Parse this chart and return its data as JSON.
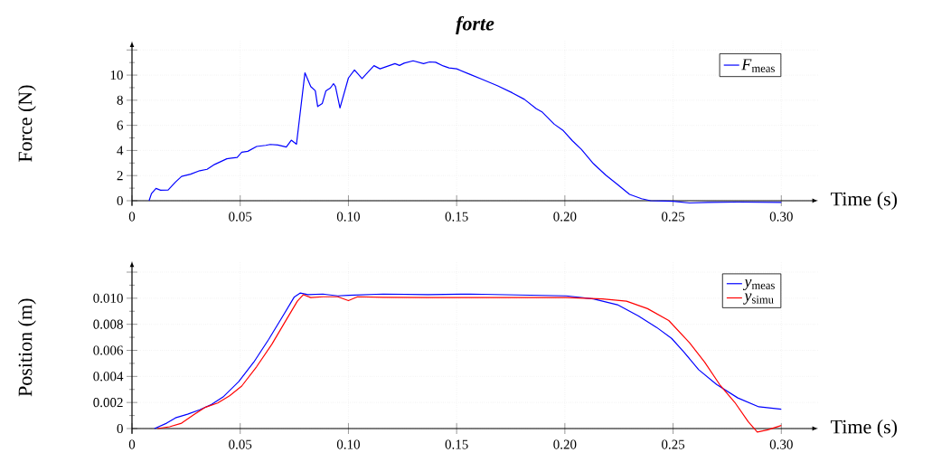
{
  "chart_data": [
    {
      "type": "line",
      "title": "forte",
      "xlabel": "Time (s)",
      "ylabel": "Force (N)",
      "xlim": [
        0,
        0.317
      ],
      "ylim": [
        -0.4,
        12.7
      ],
      "xticks": [
        0,
        {
          "value": 0.05,
          "label": "0.05"
        },
        {
          "value": 0.1,
          "label": "0.10"
        },
        {
          "value": 0.15,
          "label": "0.15"
        },
        {
          "value": 0.2,
          "label": "0.20"
        },
        {
          "value": 0.25,
          "label": "0.25"
        },
        {
          "value": 0.3,
          "label": "0.30"
        }
      ],
      "yticks": [
        0,
        2,
        4,
        6,
        8,
        10,
        {
          "value": 12,
          "label": null
        }
      ],
      "grid": true,
      "legend": "top right",
      "series": [
        {
          "name": "*F*$_{meas}$",
          "color": "#0000ff",
          "x": [
            0.0079,
            0.009,
            0.0111,
            0.0132,
            0.0167,
            0.0201,
            0.0229,
            0.0271,
            0.0313,
            0.0347,
            0.0382,
            0.0438,
            0.0486,
            0.0507,
            0.0535,
            0.0576,
            0.0618,
            0.0639,
            0.0674,
            0.0713,
            0.0736,
            0.076,
            0.0799,
            0.0826,
            0.0847,
            0.0858,
            0.0879,
            0.0896,
            0.0917,
            0.0931,
            0.094,
            0.0961,
            0.1,
            0.1028,
            0.1063,
            0.1118,
            0.1146,
            0.1188,
            0.1215,
            0.1236,
            0.1257,
            0.1299,
            0.1347,
            0.1375,
            0.1403,
            0.1438,
            0.1465,
            0.15,
            0.1563,
            0.1618,
            0.1688,
            0.1757,
            0.1813,
            0.1868,
            0.1896,
            0.1951,
            0.1993,
            0.2035,
            0.2076,
            0.2132,
            0.2188,
            0.2243,
            0.2299,
            0.2354,
            0.2396,
            0.25,
            0.2576,
            0.266,
            0.2799,
            0.3
          ],
          "values": [
            0,
            0.57,
            0.98,
            0.84,
            0.86,
            1.48,
            1.93,
            2.11,
            2.39,
            2.5,
            2.89,
            3.34,
            3.45,
            3.86,
            3.93,
            4.32,
            4.41,
            4.48,
            4.43,
            4.27,
            4.82,
            4.5,
            10.18,
            9.09,
            8.75,
            7.5,
            7.73,
            8.75,
            8.98,
            9.32,
            9.09,
            7.39,
            9.77,
            10.41,
            9.73,
            10.75,
            10.5,
            10.75,
            10.91,
            10.77,
            10.95,
            11.14,
            10.91,
            11.05,
            11.02,
            10.73,
            10.57,
            10.5,
            10.05,
            9.66,
            9.16,
            8.59,
            8.07,
            7.32,
            7.05,
            6.09,
            5.57,
            4.77,
            4.09,
            2.95,
            2.05,
            1.3,
            0.5,
            0.16,
            0,
            -0.05,
            -0.18,
            -0.14,
            -0.11,
            -0.14
          ]
        }
      ]
    },
    {
      "type": "line",
      "xlabel": "Time (s)",
      "ylabel": "Position (m)",
      "xlim": [
        0,
        0.317
      ],
      "ylim": [
        -0.0004,
        0.01285
      ],
      "xticks": [
        0,
        {
          "value": 0.05,
          "label": "0.05"
        },
        {
          "value": 0.1,
          "label": "0.10"
        },
        {
          "value": 0.15,
          "label": "0.15"
        },
        {
          "value": 0.2,
          "label": "0.20"
        },
        {
          "value": 0.25,
          "label": "0.25"
        },
        {
          "value": 0.3,
          "label": "0.30"
        }
      ],
      "yticks": [
        0,
        {
          "value": 0.002,
          "label": "0.002"
        },
        {
          "value": 0.004,
          "label": "0.004"
        },
        {
          "value": 0.006,
          "label": "0.006"
        },
        {
          "value": 0.008,
          "label": "0.008"
        },
        {
          "value": 0.01,
          "label": "0.010"
        },
        {
          "value": 0.012,
          "label": null
        }
      ],
      "grid": true,
      "legend": "top right",
      "series": [
        {
          "name": "*y*$_{meas}$",
          "color": "#0000ff",
          "x": [
            0.0104,
            0.016,
            0.0201,
            0.0257,
            0.0313,
            0.0368,
            0.0424,
            0.0493,
            0.0563,
            0.0632,
            0.0701,
            0.075,
            0.0778,
            0.0813,
            0.0882,
            0.0951,
            0.1,
            0.116,
            0.1368,
            0.1563,
            0.2007,
            0.2132,
            0.2243,
            0.234,
            0.2424,
            0.2493,
            0.2549,
            0.2618,
            0.2701,
            0.2799,
            0.2896,
            0.3
          ],
          "values": [
            0,
            0.00041,
            0.00082,
            0.0011,
            0.00144,
            0.00185,
            0.00247,
            0.0036,
            0.0051,
            0.00685,
            0.00874,
            0.0101,
            0.0104,
            0.01027,
            0.01032,
            0.01018,
            0.01023,
            0.01032,
            0.01027,
            0.01032,
            0.01018,
            0.00995,
            0.0095,
            0.00863,
            0.00776,
            0.00692,
            0.00589,
            0.00452,
            0.00338,
            0.00235,
            0.00167,
            0.00148
          ]
        },
        {
          "name": "*y*$_{simu}$",
          "color": "#ff0000",
          "x": [
            0.0118,
            0.0174,
            0.0229,
            0.0285,
            0.034,
            0.0396,
            0.0451,
            0.0507,
            0.0576,
            0.0646,
            0.0715,
            0.0764,
            0.0792,
            0.0826,
            0.0882,
            0.0951,
            0.1,
            0.1042,
            0.116,
            0.1368,
            0.1563,
            0.2007,
            0.2174,
            0.2285,
            0.2382,
            0.248,
            0.2576,
            0.2646,
            0.2715,
            0.2785,
            0.2847,
            0.2889,
            0.2938,
            0.3
          ],
          "values": [
            0,
            0.00014,
            0.00041,
            0.00105,
            0.00164,
            0.00196,
            0.00251,
            0.00326,
            0.00475,
            0.00646,
            0.0084,
            0.00977,
            0.01027,
            0.01005,
            0.01011,
            0.01011,
            0.00982,
            0.01011,
            0.01007,
            0.01005,
            0.01005,
            0.01005,
            0.00995,
            0.00977,
            0.0092,
            0.00829,
            0.00658,
            0.00509,
            0.00338,
            0.00201,
            0.00053,
            -0.00027,
            -0.0001,
            0.00023
          ]
        }
      ]
    }
  ]
}
